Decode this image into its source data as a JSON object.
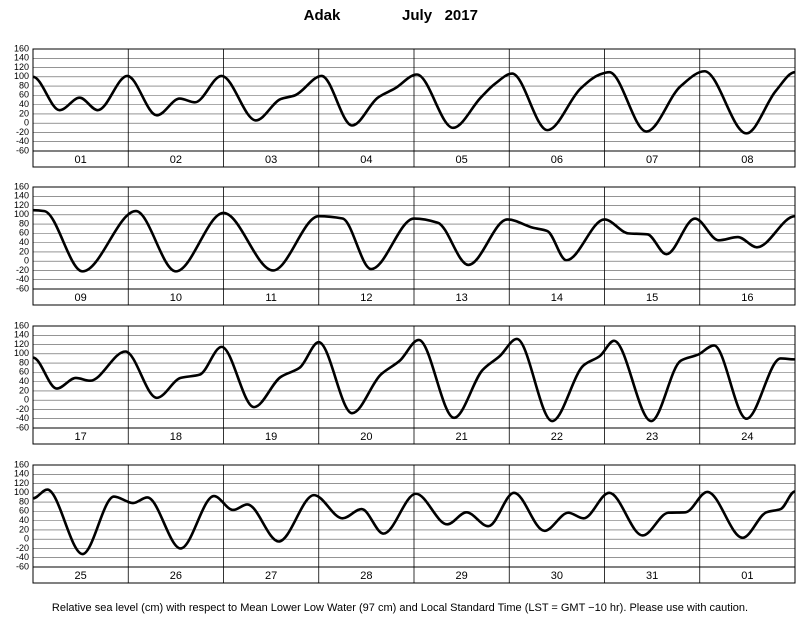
{
  "title": "Adak",
  "date": "July   2017",
  "footnote": "Relative sea level (cm) with respect to Mean Lower Low Water (97 cm) and Local Standard Time (LST = GMT −10 hr). Please use with caution.",
  "chart_data": [
    {
      "type": "line",
      "color": "#000000",
      "grid": true,
      "xlim": [
        0,
        8
      ],
      "ylim": [
        -60,
        160
      ],
      "yticks": [
        -60,
        -40,
        -20,
        0,
        20,
        40,
        60,
        80,
        100,
        120,
        140,
        160
      ],
      "categories": [
        "01",
        "02",
        "03",
        "04",
        "05",
        "06",
        "07",
        "08"
      ],
      "x": [
        0,
        0.28,
        0.49,
        0.68,
        0.99,
        1.3,
        1.54,
        1.7,
        1.98,
        2.34,
        2.6,
        2.75,
        3.03,
        3.35,
        3.62,
        3.8,
        4.03,
        4.41,
        4.7,
        4.85,
        5.03,
        5.4,
        5.75,
        5.95,
        6.05,
        6.44,
        6.8,
        7.05,
        7.49,
        7.8,
        8
      ],
      "values": [
        100,
        28,
        55,
        28,
        102,
        17,
        53,
        45,
        102,
        6,
        52,
        60,
        102,
        -5,
        55,
        75,
        105,
        -10,
        55,
        85,
        107,
        -15,
        75,
        105,
        110,
        -18,
        80,
        112,
        -22,
        70,
        110
      ]
    },
    {
      "type": "line",
      "color": "#000000",
      "grid": true,
      "xlim": [
        0,
        8
      ],
      "ylim": [
        -60,
        160
      ],
      "yticks": [
        -60,
        -40,
        -20,
        0,
        20,
        40,
        60,
        80,
        100,
        120,
        140,
        160
      ],
      "categories": [
        "09",
        "10",
        "11",
        "12",
        "13",
        "14",
        "15",
        "16"
      ],
      "x": [
        0,
        0.12,
        0.52,
        1.08,
        1.5,
        2.0,
        2.52,
        3.0,
        3.25,
        3.55,
        4.0,
        4.25,
        4.57,
        4.98,
        5.25,
        5.4,
        5.6,
        6.0,
        6.25,
        6.45,
        6.65,
        6.95,
        7.2,
        7.4,
        7.6,
        8
      ],
      "values": [
        110,
        108,
        -22,
        108,
        -22,
        104,
        -20,
        97,
        92,
        -17,
        92,
        83,
        -8,
        90,
        72,
        65,
        2,
        90,
        60,
        58,
        15,
        92,
        45,
        52,
        30,
        97
      ]
    },
    {
      "type": "line",
      "color": "#000000",
      "grid": true,
      "xlim": [
        0,
        8
      ],
      "ylim": [
        -60,
        160
      ],
      "yticks": [
        -60,
        -40,
        -20,
        0,
        20,
        40,
        60,
        80,
        100,
        120,
        140,
        160
      ],
      "categories": [
        "17",
        "18",
        "19",
        "20",
        "21",
        "22",
        "23",
        "24"
      ],
      "x": [
        0,
        0.25,
        0.45,
        0.6,
        0.97,
        1.3,
        1.55,
        1.75,
        1.98,
        2.32,
        2.6,
        2.8,
        3.0,
        3.35,
        3.65,
        3.85,
        4.05,
        4.42,
        4.72,
        4.9,
        5.08,
        5.45,
        5.78,
        5.95,
        6.1,
        6.49,
        6.8,
        6.98,
        7.15,
        7.49,
        7.85,
        8
      ],
      "values": [
        92,
        25,
        48,
        42,
        105,
        5,
        48,
        55,
        115,
        -15,
        50,
        70,
        125,
        -28,
        55,
        85,
        130,
        -38,
        65,
        95,
        132,
        -45,
        75,
        95,
        128,
        -45,
        85,
        98,
        118,
        -40,
        90,
        88
      ]
    },
    {
      "type": "line",
      "color": "#000000",
      "grid": true,
      "xlim": [
        0,
        8
      ],
      "ylim": [
        -60,
        160
      ],
      "yticks": [
        -60,
        -40,
        -20,
        0,
        20,
        40,
        60,
        80,
        100,
        120,
        140,
        160
      ],
      "categories": [
        "25",
        "26",
        "27",
        "28",
        "29",
        "30",
        "31",
        "01"
      ],
      "x": [
        0,
        0.15,
        0.52,
        0.85,
        1.05,
        1.2,
        1.55,
        1.9,
        2.1,
        2.25,
        2.58,
        2.95,
        3.25,
        3.45,
        3.68,
        4.02,
        4.35,
        4.55,
        4.78,
        5.05,
        5.37,
        5.62,
        5.78,
        6.05,
        6.4,
        6.67,
        6.85,
        7.08,
        7.45,
        7.7,
        7.85,
        8
      ],
      "values": [
        88,
        107,
        -32,
        92,
        78,
        90,
        -20,
        93,
        63,
        75,
        -5,
        95,
        45,
        65,
        12,
        98,
        32,
        58,
        28,
        100,
        18,
        57,
        45,
        100,
        8,
        57,
        58,
        102,
        3,
        58,
        65,
        103
      ]
    }
  ]
}
